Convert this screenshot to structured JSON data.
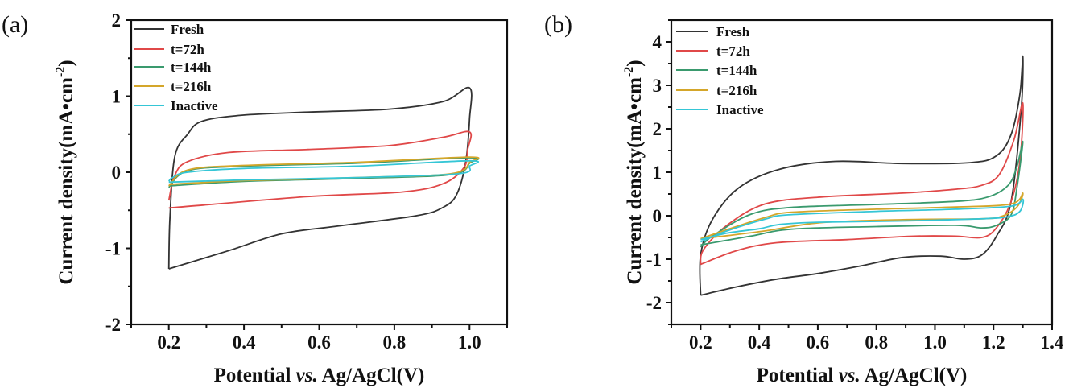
{
  "chart_data": [
    {
      "type": "line",
      "panel_label": "(a)",
      "xlabel_pre": "Potential ",
      "xlabel_italic": "vs.",
      "xlabel_post": " Ag/AgCl(V)",
      "ylabel": "Current density(mA•cm",
      "ylabel_sup": "-2",
      "ylabel_end": ")",
      "xlim": [
        0.1,
        1.1
      ],
      "ylim": [
        -2,
        2
      ],
      "xticks": [
        "0.2",
        "0.4",
        "0.6",
        "0.8",
        "1.0"
      ],
      "xtick_values": [
        0.2,
        0.4,
        0.6,
        0.8,
        1.0
      ],
      "yticks": [
        "-2",
        "-1",
        "0",
        "1",
        "2"
      ],
      "ytick_values": [
        -2,
        -1,
        0,
        1,
        2
      ],
      "legend_position": "top-left",
      "series": [
        {
          "name": "Fresh",
          "color": "#333333",
          "points": [
            [
              0.2,
              -1.27
            ],
            [
              0.203,
              -0.6
            ],
            [
              0.216,
              0.21
            ],
            [
              0.25,
              0.5
            ],
            [
              0.288,
              0.67
            ],
            [
              0.395,
              0.75
            ],
            [
              0.57,
              0.79
            ],
            [
              0.786,
              0.83
            ],
            [
              0.93,
              0.93
            ],
            [
              1.0,
              1.11
            ],
            [
              1.0,
              0.7
            ],
            [
              0.99,
              0.14
            ],
            [
              0.966,
              -0.29
            ],
            [
              0.93,
              -0.46
            ],
            [
              0.86,
              -0.57
            ],
            [
              0.645,
              -0.71
            ],
            [
              0.5,
              -0.81
            ],
            [
              0.36,
              -1.03
            ],
            [
              0.2,
              -1.27
            ]
          ]
        },
        {
          "name": "t=72h",
          "color": "#e04848",
          "points": [
            [
              0.2,
              -0.37
            ],
            [
              0.216,
              -0.04
            ],
            [
              0.25,
              0.14
            ],
            [
              0.36,
              0.26
            ],
            [
              0.57,
              0.3
            ],
            [
              0.786,
              0.35
            ],
            [
              0.93,
              0.46
            ],
            [
              1.0,
              0.53
            ],
            [
              0.995,
              0.3
            ],
            [
              0.985,
              0.06
            ],
            [
              0.93,
              -0.15
            ],
            [
              0.82,
              -0.26
            ],
            [
              0.57,
              -0.32
            ],
            [
              0.2,
              -0.47
            ]
          ]
        },
        {
          "name": "t=144h",
          "color": "#3a9a6e",
          "points": [
            [
              0.2,
              -0.2
            ],
            [
              0.25,
              0.02
            ],
            [
              0.4,
              0.08
            ],
            [
              0.7,
              0.12
            ],
            [
              1.0,
              0.19
            ],
            [
              1.0,
              0.12
            ],
            [
              0.95,
              -0.03
            ],
            [
              0.7,
              -0.08
            ],
            [
              0.4,
              -0.12
            ],
            [
              0.2,
              -0.18
            ]
          ]
        },
        {
          "name": "t=216h",
          "color": "#d4a62a",
          "points": [
            [
              0.2,
              -0.18
            ],
            [
              0.25,
              0.03
            ],
            [
              0.4,
              0.09
            ],
            [
              0.7,
              0.13
            ],
            [
              1.0,
              0.2
            ],
            [
              1.0,
              0.13
            ],
            [
              0.95,
              -0.02
            ],
            [
              0.7,
              -0.07
            ],
            [
              0.4,
              -0.11
            ],
            [
              0.2,
              -0.16
            ]
          ]
        },
        {
          "name": "Inactive",
          "color": "#35c6d6",
          "points": [
            [
              0.2,
              -0.12
            ],
            [
              0.21,
              -0.07
            ],
            [
              0.25,
              0.0
            ],
            [
              0.4,
              0.05
            ],
            [
              0.7,
              0.08
            ],
            [
              1.0,
              0.15
            ],
            [
              1.0,
              0.08
            ],
            [
              0.97,
              -0.02
            ],
            [
              0.7,
              -0.07
            ],
            [
              0.4,
              -0.1
            ],
            [
              0.2,
              -0.13
            ]
          ]
        }
      ]
    },
    {
      "type": "line",
      "panel_label": "(b)",
      "xlabel_pre": "Potential ",
      "xlabel_italic": "vs.",
      "xlabel_post": " Ag/AgCl(V)",
      "ylabel": "Current density(mA•cm",
      "ylabel_sup": "-2",
      "ylabel_end": ")",
      "xlim": [
        0.1,
        1.4
      ],
      "ylim": [
        -2.5,
        4.5
      ],
      "xticks": [
        "0.2",
        "0.4",
        "0.6",
        "0.8",
        "1.0",
        "1.2",
        "1.4"
      ],
      "xtick_values": [
        0.2,
        0.4,
        0.6,
        0.8,
        1.0,
        1.2,
        1.4
      ],
      "yticks": [
        "-2",
        "-1",
        "0",
        "1",
        "2",
        "3",
        "4"
      ],
      "ytick_values": [
        -2,
        -1,
        0,
        1,
        2,
        3,
        4
      ],
      "legend_position": "top-left",
      "series": [
        {
          "name": "Fresh",
          "color": "#333333",
          "points": [
            [
              0.2,
              -1.83
            ],
            [
              0.2,
              -0.9
            ],
            [
              0.24,
              -0.09
            ],
            [
              0.33,
              0.64
            ],
            [
              0.47,
              1.07
            ],
            [
              0.66,
              1.25
            ],
            [
              0.89,
              1.2
            ],
            [
              1.12,
              1.22
            ],
            [
              1.21,
              1.38
            ],
            [
              1.26,
              1.87
            ],
            [
              1.29,
              2.8
            ],
            [
              1.3,
              3.67
            ],
            [
              1.295,
              2.5
            ],
            [
              1.26,
              0.33
            ],
            [
              1.21,
              -0.47
            ],
            [
              1.16,
              -0.9
            ],
            [
              1.1,
              -1.0
            ],
            [
              1.02,
              -0.93
            ],
            [
              0.89,
              -0.96
            ],
            [
              0.75,
              -1.15
            ],
            [
              0.6,
              -1.33
            ],
            [
              0.46,
              -1.46
            ],
            [
              0.32,
              -1.64
            ],
            [
              0.2,
              -1.83
            ]
          ]
        },
        {
          "name": "t=72h",
          "color": "#e04848",
          "points": [
            [
              0.2,
              -1.12
            ],
            [
              0.21,
              -0.78
            ],
            [
              0.29,
              -0.22
            ],
            [
              0.42,
              0.27
            ],
            [
              0.61,
              0.43
            ],
            [
              0.89,
              0.52
            ],
            [
              1.07,
              0.61
            ],
            [
              1.16,
              0.7
            ],
            [
              1.22,
              0.95
            ],
            [
              1.27,
              1.75
            ],
            [
              1.3,
              2.59
            ],
            [
              1.29,
              1.26
            ],
            [
              1.26,
              0.33
            ],
            [
              1.21,
              -0.28
            ],
            [
              1.16,
              -0.5
            ],
            [
              1.07,
              -0.47
            ],
            [
              0.93,
              -0.47
            ],
            [
              0.7,
              -0.55
            ],
            [
              0.46,
              -0.62
            ],
            [
              0.32,
              -0.81
            ],
            [
              0.2,
              -1.12
            ]
          ]
        },
        {
          "name": "t=144h",
          "color": "#3a9a6e",
          "points": [
            [
              0.2,
              -0.72
            ],
            [
              0.24,
              -0.47
            ],
            [
              0.37,
              0.03
            ],
            [
              0.51,
              0.19
            ],
            [
              0.8,
              0.26
            ],
            [
              1.07,
              0.33
            ],
            [
              1.18,
              0.43
            ],
            [
              1.25,
              0.7
            ],
            [
              1.28,
              1.13
            ],
            [
              1.3,
              1.7
            ],
            [
              1.28,
              0.64
            ],
            [
              1.26,
              0.02
            ],
            [
              1.21,
              -0.22
            ],
            [
              1.16,
              -0.28
            ],
            [
              1.07,
              -0.22
            ],
            [
              0.8,
              -0.25
            ],
            [
              0.51,
              -0.31
            ],
            [
              0.37,
              -0.47
            ],
            [
              0.2,
              -0.67
            ]
          ]
        },
        {
          "name": "t=216h",
          "color": "#d4a62a",
          "points": [
            [
              0.2,
              -0.53
            ],
            [
              0.29,
              -0.32
            ],
            [
              0.42,
              -0.04
            ],
            [
              0.51,
              0.08
            ],
            [
              0.8,
              0.15
            ],
            [
              1.07,
              0.2
            ],
            [
              1.26,
              0.27
            ],
            [
              1.3,
              0.52
            ],
            [
              1.28,
              0.2
            ],
            [
              1.23,
              -0.01
            ],
            [
              1.16,
              -0.07
            ],
            [
              0.89,
              -0.09
            ],
            [
              0.61,
              -0.16
            ],
            [
              0.42,
              -0.35
            ],
            [
              0.29,
              -0.46
            ],
            [
              0.2,
              -0.53
            ]
          ]
        },
        {
          "name": "Inactive",
          "color": "#35c6d6",
          "points": [
            [
              0.2,
              -0.6
            ],
            [
              0.29,
              -0.35
            ],
            [
              0.42,
              -0.08
            ],
            [
              0.5,
              0.02
            ],
            [
              0.8,
              0.1
            ],
            [
              1.07,
              0.15
            ],
            [
              1.26,
              0.22
            ],
            [
              1.3,
              0.38
            ],
            [
              1.29,
              0.1
            ],
            [
              1.25,
              -0.02
            ],
            [
              1.16,
              -0.07
            ],
            [
              0.89,
              -0.12
            ],
            [
              0.6,
              -0.15
            ],
            [
              0.47,
              -0.2
            ],
            [
              0.4,
              -0.3
            ],
            [
              0.29,
              -0.4
            ],
            [
              0.2,
              -0.55
            ]
          ]
        }
      ]
    }
  ]
}
